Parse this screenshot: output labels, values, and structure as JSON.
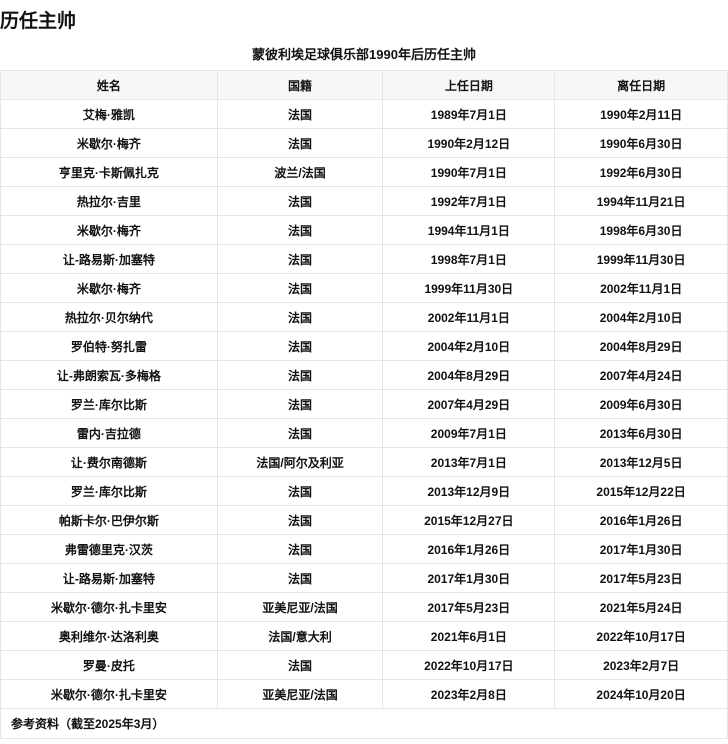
{
  "section_title": "历任主帅",
  "table": {
    "caption": "蒙彼利埃足球俱乐部1990年后历任主帅",
    "headers": [
      "姓名",
      "国籍",
      "上任日期",
      "离任日期"
    ],
    "rows": [
      [
        "艾梅·雅凯",
        "法国",
        "1989年7月1日",
        "1990年2月11日"
      ],
      [
        "米歇尔·梅齐",
        "法国",
        "1990年2月12日",
        "1990年6月30日"
      ],
      [
        "亨里克·卡斯佩扎克",
        "波兰/法国",
        "1990年7月1日",
        "1992年6月30日"
      ],
      [
        "热拉尔·吉里",
        "法国",
        "1992年7月1日",
        "1994年11月21日"
      ],
      [
        "米歇尔·梅齐",
        "法国",
        "1994年11月1日",
        "1998年6月30日"
      ],
      [
        "让-路易斯·加塞特",
        "法国",
        "1998年7月1日",
        "1999年11月30日"
      ],
      [
        "米歇尔·梅齐",
        "法国",
        "1999年11月30日",
        "2002年11月1日"
      ],
      [
        "热拉尔·贝尔纳代",
        "法国",
        "2002年11月1日",
        "2004年2月10日"
      ],
      [
        "罗伯特·努扎雷",
        "法国",
        "2004年2月10日",
        "2004年8月29日"
      ],
      [
        "让-弗朗索瓦·多梅格",
        "法国",
        "2004年8月29日",
        "2007年4月24日"
      ],
      [
        "罗兰·库尔比斯",
        "法国",
        "2007年4月29日",
        "2009年6月30日"
      ],
      [
        "雷内·吉拉德",
        "法国",
        "2009年7月1日",
        "2013年6月30日"
      ],
      [
        "让·费尔南德斯",
        "法国/阿尔及利亚",
        "2013年7月1日",
        "2013年12月5日"
      ],
      [
        "罗兰·库尔比斯",
        "法国",
        "2013年12月9日",
        "2015年12月22日"
      ],
      [
        "帕斯卡尔·巴伊尔斯",
        "法国",
        "2015年12月27日",
        "2016年1月26日"
      ],
      [
        "弗雷德里克·汉茨",
        "法国",
        "2016年1月26日",
        "2017年1月30日"
      ],
      [
        "让-路易斯·加塞特",
        "法国",
        "2017年1月30日",
        "2017年5月23日"
      ],
      [
        "米歇尔·德尔·扎卡里安",
        "亚美尼亚/法国",
        "2017年5月23日",
        "2021年5月24日"
      ],
      [
        "奥利维尔·达洛利奥",
        "法国/意大利",
        "2021年6月1日",
        "2022年10月17日"
      ],
      [
        "罗曼·皮托",
        "法国",
        "2022年10月17日",
        "2023年2月7日"
      ],
      [
        "米歇尔·德尔·扎卡里安",
        "亚美尼亚/法国",
        "2023年2月8日",
        "2024年10月20日"
      ]
    ],
    "footer": "参考资料（截至2025年3月）"
  }
}
